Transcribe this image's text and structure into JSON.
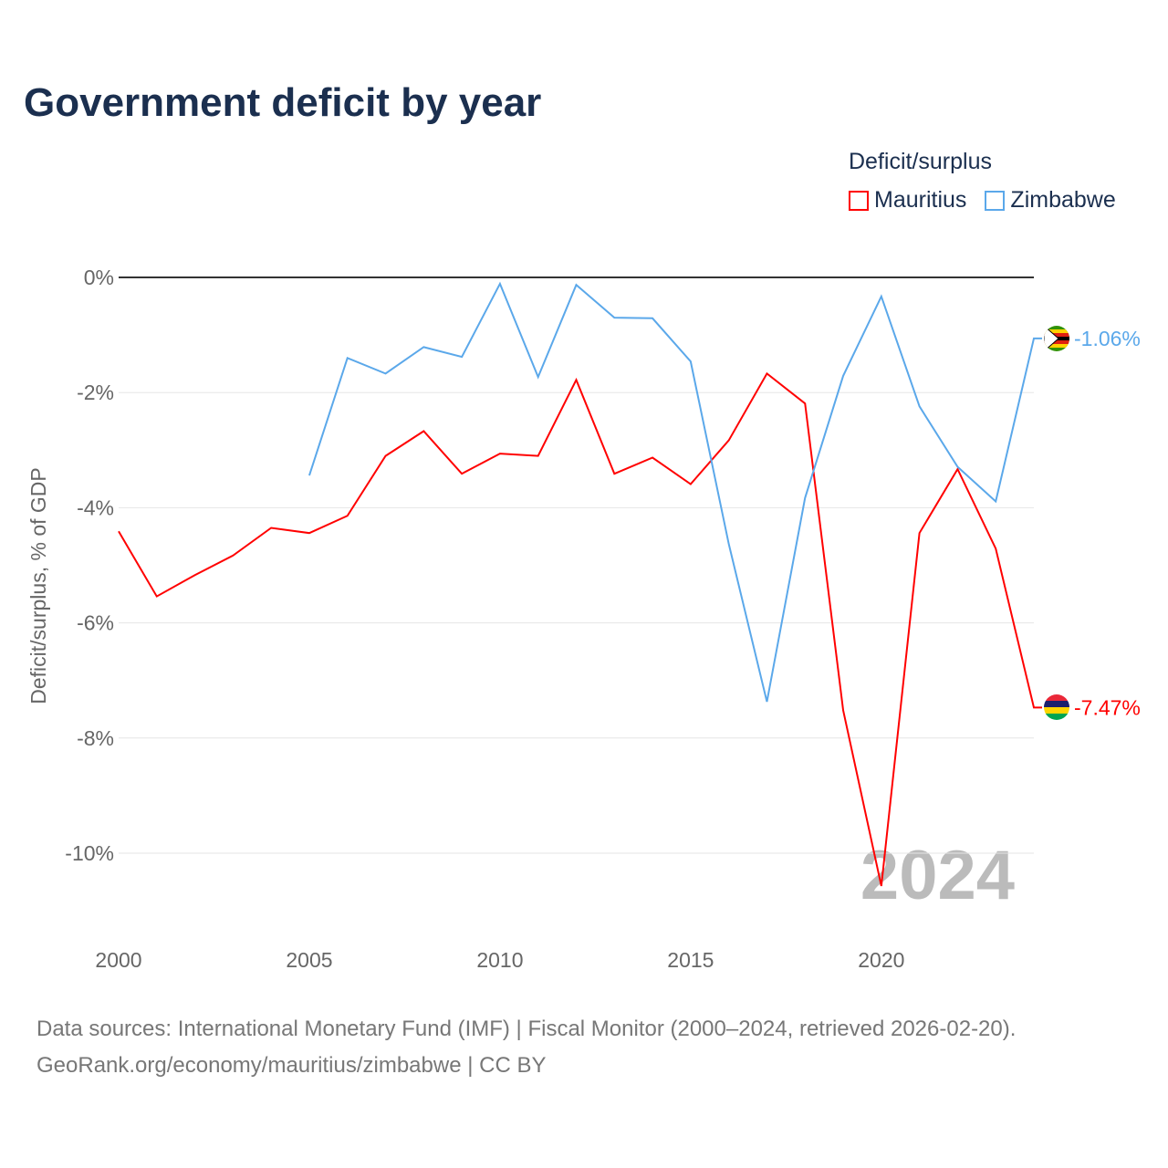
{
  "title": "Government deficit by year",
  "legend": {
    "title": "Deficit/surplus",
    "items": [
      {
        "label": "Mauritius",
        "color": "#ff0000"
      },
      {
        "label": "Zimbabwe",
        "color": "#5ba8ea"
      }
    ]
  },
  "footer": {
    "line1": "Data sources: International Monetary Fund (IMF) | Fiscal Monitor (2000–2024, retrieved 2026-02-20).",
    "line2": "GeoRank.org/economy/mauritius/zimbabwe | CC BY"
  },
  "chart_data": {
    "type": "line",
    "title": "Government deficit by year",
    "xlabel": "",
    "ylabel": "Deficit/surplus, % of GDP",
    "xlim": [
      2000,
      2024
    ],
    "ylim": [
      -11,
      0
    ],
    "xticks": [
      2000,
      2005,
      2010,
      2015,
      2020
    ],
    "yticks": [
      0,
      -2,
      -4,
      -6,
      -8,
      -10
    ],
    "ytick_labels": [
      "0%",
      "-2%",
      "-4%",
      "-6%",
      "-8%",
      "-10%"
    ],
    "watermark_year": "2024",
    "series": [
      {
        "name": "Mauritius",
        "color": "#ff0000",
        "end_label": "-7.47%",
        "x": [
          2000,
          2001,
          2002,
          2003,
          2004,
          2005,
          2006,
          2007,
          2008,
          2009,
          2010,
          2011,
          2012,
          2013,
          2014,
          2015,
          2016,
          2017,
          2018,
          2019,
          2020,
          2021,
          2022,
          2023,
          2024
        ],
        "values": [
          -4.41,
          -5.54,
          -5.17,
          -4.83,
          -4.35,
          -4.44,
          -4.14,
          -3.1,
          -2.67,
          -3.41,
          -3.06,
          -3.1,
          -1.78,
          -3.41,
          -3.13,
          -3.59,
          -2.83,
          -1.67,
          -2.19,
          -7.52,
          -10.57,
          -4.44,
          -3.33,
          -4.71,
          -7.47
        ]
      },
      {
        "name": "Zimbabwe",
        "color": "#5ba8ea",
        "end_label": "-1.06%",
        "x": [
          2005,
          2006,
          2007,
          2008,
          2009,
          2010,
          2011,
          2012,
          2013,
          2014,
          2015,
          2016,
          2017,
          2018,
          2019,
          2020,
          2021,
          2022,
          2023,
          2024
        ],
        "values": [
          -3.44,
          -1.4,
          -1.67,
          -1.21,
          -1.38,
          -0.11,
          -1.73,
          -0.13,
          -0.7,
          -0.71,
          -1.46,
          -4.63,
          -7.37,
          -3.83,
          -1.71,
          -0.33,
          -2.24,
          -3.29,
          -3.89,
          -1.06
        ]
      }
    ]
  }
}
